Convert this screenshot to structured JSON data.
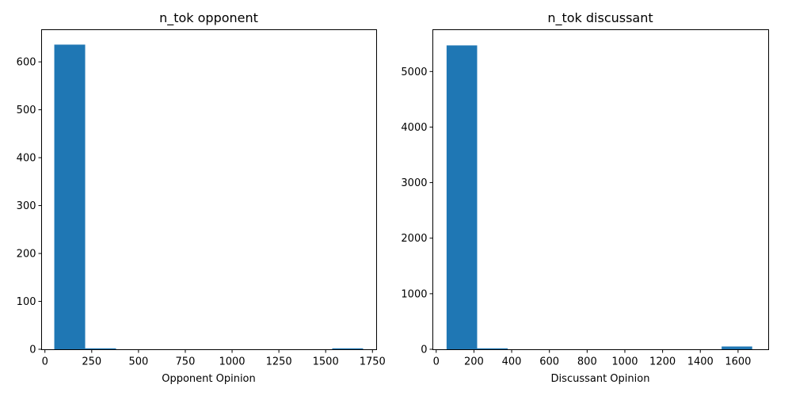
{
  "chart_data": [
    {
      "type": "bar",
      "title": "n_tok opponent",
      "xlabel": "Opponent Opinion",
      "ylabel": "",
      "xlim": [
        -20,
        1770
      ],
      "ylim": [
        0,
        668
      ],
      "xticks": [
        0,
        250,
        500,
        750,
        1000,
        1250,
        1500,
        1750
      ],
      "xtick_labels": [
        "0",
        "250",
        "500",
        "750",
        "1000",
        "1250",
        "1500",
        "1750"
      ],
      "yticks": [
        0,
        100,
        200,
        300,
        400,
        500,
        600
      ],
      "ytick_labels": [
        "0",
        "100",
        "200",
        "300",
        "400",
        "500",
        "600"
      ],
      "bin_edges": [
        50,
        215,
        380,
        545,
        710,
        875,
        1040,
        1205,
        1370,
        1535,
        1700
      ],
      "values": [
        636,
        1,
        0,
        0,
        0,
        0,
        0,
        0,
        0,
        1
      ],
      "color": "#1f77b4",
      "grid": false
    },
    {
      "type": "bar",
      "title": "n_tok discussant",
      "xlabel": "Discussant Opinion",
      "ylabel": "",
      "xlim": [
        -20,
        1760
      ],
      "ylim": [
        0,
        5760
      ],
      "xticks": [
        0,
        200,
        400,
        600,
        800,
        1000,
        1200,
        1400,
        1600
      ],
      "xtick_labels": [
        "0",
        "200",
        "400",
        "600",
        "800",
        "1000",
        "1200",
        "1400",
        "1600"
      ],
      "yticks": [
        0,
        1000,
        2000,
        3000,
        4000,
        5000
      ],
      "ytick_labels": [
        "0",
        "1000",
        "2000",
        "3000",
        "4000",
        "5000"
      ],
      "bin_edges": [
        55,
        217,
        379,
        541,
        703,
        865,
        1027,
        1189,
        1351,
        1513,
        1675
      ],
      "values": [
        5470,
        8,
        0,
        0,
        0,
        0,
        0,
        0,
        0,
        50
      ],
      "color": "#1f77b4",
      "grid": false
    }
  ]
}
